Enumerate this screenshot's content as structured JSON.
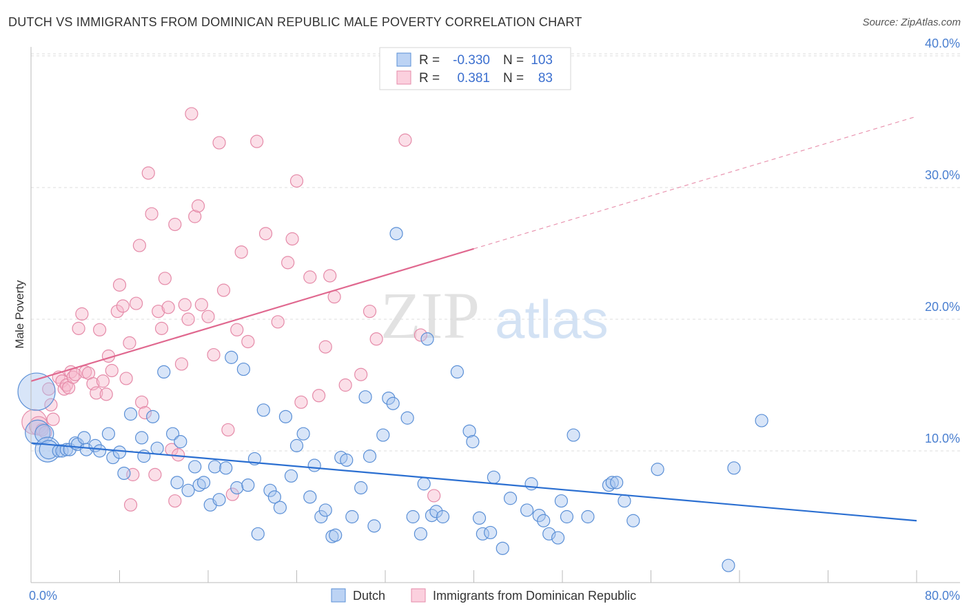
{
  "title": "DUTCH VS IMMIGRANTS FROM DOMINICAN REPUBLIC MALE POVERTY CORRELATION CHART",
  "source": "Source: ZipAtlas.com",
  "watermark": {
    "zip": "ZIP",
    "atlas": "atlas"
  },
  "legend": {
    "dutch": {
      "r_label": "R =",
      "r_value": "-0.330",
      "n_label": "N =",
      "n_value": "103"
    },
    "dominican": {
      "r_label": "R =",
      "r_value": "0.381",
      "n_label": "N =",
      "n_value": "83"
    }
  },
  "bottom_legend": {
    "dutch": "Dutch",
    "dominican": "Immigrants from Dominican Republic"
  },
  "colors": {
    "dutch_fill": "#a9c6f0",
    "dutch_stroke": "#5a8fd6",
    "dutch_line": "#2b6fd1",
    "dominican_fill": "#f6b9cd",
    "dominican_stroke": "#e58aa8",
    "dominican_line": "#e0688f",
    "tick_text": "#4a7fd0",
    "grid": "#dcdcdc"
  },
  "chart_data": {
    "type": "scatter",
    "title": "DUTCH VS IMMIGRANTS FROM DOMINICAN REPUBLIC MALE POVERTY CORRELATION CHART",
    "ylabel": "Male Poverty",
    "xlabel": "",
    "xlim": [
      0,
      80
    ],
    "ylim": [
      0,
      42
    ],
    "x_tick_labels": {
      "min": "0.0%",
      "max": "80.0%"
    },
    "y_ticks": [
      {
        "value": 10,
        "label": "10.0%"
      },
      {
        "value": 20,
        "label": "20.0%"
      },
      {
        "value": 30,
        "label": "30.0%"
      },
      {
        "value": 40,
        "label": "40.0%"
      }
    ],
    "grid": true,
    "legend_position": "top-center",
    "series": [
      {
        "name": "Dutch",
        "r": -0.33,
        "n": 103,
        "trend": {
          "x": [
            0,
            80
          ],
          "y": [
            10.6,
            4.7
          ],
          "dashed_from": null
        },
        "points": [
          [
            0.5,
            14.5,
            3
          ],
          [
            0.6,
            11.4,
            2
          ],
          [
            1.2,
            11.3,
            1.5
          ],
          [
            1.5,
            10.1,
            2
          ],
          [
            1.6,
            10.1,
            1.5
          ],
          [
            2.5,
            10.0,
            1
          ],
          [
            2.8,
            10.0,
            1
          ],
          [
            3.2,
            10.1,
            1
          ],
          [
            3.5,
            10.1,
            1
          ],
          [
            4.0,
            10.6,
            1
          ],
          [
            4.2,
            10.5,
            1
          ],
          [
            4.8,
            11.0,
            1
          ],
          [
            5.0,
            10.1,
            1
          ],
          [
            5.8,
            10.4,
            1
          ],
          [
            6.2,
            10.0,
            1
          ],
          [
            7.0,
            11.3,
            1
          ],
          [
            7.4,
            9.5,
            1
          ],
          [
            8.0,
            9.9,
            1
          ],
          [
            8.4,
            8.3,
            1
          ],
          [
            9.0,
            12.8,
            1
          ],
          [
            10.0,
            11.0,
            1
          ],
          [
            10.2,
            9.6,
            1
          ],
          [
            11.0,
            12.6,
            1
          ],
          [
            11.4,
            10.2,
            1
          ],
          [
            12.0,
            16.0,
            1
          ],
          [
            12.8,
            11.3,
            1
          ],
          [
            13.2,
            7.6,
            1
          ],
          [
            13.5,
            10.7,
            1
          ],
          [
            14.2,
            7.0,
            1
          ],
          [
            14.8,
            8.8,
            1
          ],
          [
            15.2,
            7.4,
            1
          ],
          [
            15.6,
            7.6,
            1
          ],
          [
            16.2,
            5.9,
            1
          ],
          [
            16.6,
            8.8,
            1
          ],
          [
            17.0,
            6.3,
            1
          ],
          [
            17.6,
            8.7,
            1
          ],
          [
            18.1,
            17.1,
            1
          ],
          [
            18.6,
            7.2,
            1
          ],
          [
            19.2,
            16.2,
            1
          ],
          [
            19.6,
            7.4,
            1
          ],
          [
            20.2,
            9.4,
            1
          ],
          [
            20.5,
            3.7,
            1
          ],
          [
            21.0,
            13.1,
            1
          ],
          [
            21.6,
            7.0,
            1
          ],
          [
            22.0,
            6.5,
            1
          ],
          [
            22.5,
            5.7,
            1
          ],
          [
            23.0,
            12.6,
            1
          ],
          [
            23.5,
            8.1,
            1
          ],
          [
            24.0,
            10.4,
            1
          ],
          [
            24.6,
            11.3,
            1
          ],
          [
            25.2,
            6.5,
            1
          ],
          [
            25.6,
            8.9,
            1
          ],
          [
            26.2,
            5.0,
            1
          ],
          [
            26.6,
            5.5,
            1
          ],
          [
            27.2,
            3.5,
            1
          ],
          [
            27.5,
            3.6,
            1
          ],
          [
            28.0,
            9.5,
            1
          ],
          [
            28.5,
            9.3,
            1
          ],
          [
            29.0,
            5.0,
            1
          ],
          [
            29.8,
            7.2,
            1
          ],
          [
            30.2,
            14.1,
            1
          ],
          [
            30.6,
            9.6,
            1
          ],
          [
            31.0,
            4.3,
            1
          ],
          [
            31.8,
            11.2,
            1
          ],
          [
            32.3,
            14.0,
            1
          ],
          [
            32.7,
            13.6,
            1
          ],
          [
            33.0,
            26.5,
            1
          ],
          [
            34.0,
            12.5,
            1
          ],
          [
            34.5,
            5.0,
            1
          ],
          [
            35.5,
            7.5,
            1
          ],
          [
            35.8,
            18.5,
            1
          ],
          [
            35.2,
            3.7,
            1
          ],
          [
            36.2,
            5.1,
            1
          ],
          [
            36.6,
            5.4,
            1
          ],
          [
            37.2,
            5.0,
            1
          ],
          [
            38.5,
            16.0,
            1
          ],
          [
            39.6,
            11.5,
            1
          ],
          [
            39.9,
            10.7,
            1
          ],
          [
            40.5,
            4.9,
            1
          ],
          [
            40.8,
            3.7,
            1
          ],
          [
            41.5,
            3.8,
            1
          ],
          [
            41.8,
            8.0,
            1
          ],
          [
            42.6,
            2.6,
            1
          ],
          [
            43.3,
            6.4,
            1
          ],
          [
            44.8,
            5.5,
            1
          ],
          [
            45.2,
            7.5,
            1
          ],
          [
            45.9,
            5.1,
            1
          ],
          [
            46.3,
            4.7,
            1
          ],
          [
            46.8,
            3.7,
            1
          ],
          [
            47.6,
            3.4,
            1
          ],
          [
            47.9,
            6.2,
            1
          ],
          [
            48.4,
            5.0,
            1
          ],
          [
            49.0,
            11.2,
            1
          ],
          [
            50.3,
            5.0,
            1
          ],
          [
            52.2,
            7.4,
            1
          ],
          [
            52.5,
            7.6,
            1
          ],
          [
            52.9,
            7.6,
            1
          ],
          [
            53.6,
            6.2,
            1
          ],
          [
            54.4,
            4.7,
            1
          ],
          [
            56.6,
            8.6,
            1
          ],
          [
            63.0,
            1.3,
            1
          ],
          [
            63.5,
            8.7,
            1
          ],
          [
            66.0,
            12.3,
            1
          ]
        ]
      },
      {
        "name": "Immigrants from Dominican Republic",
        "r": 0.381,
        "n": 83,
        "trend": {
          "x": [
            0,
            80
          ],
          "y": [
            15.3,
            35.4
          ],
          "dashed_from": 40
        },
        "points": [
          [
            0.3,
            12.2,
            2
          ],
          [
            0.7,
            11.9,
            1.5
          ],
          [
            1.0,
            11.6,
            1
          ],
          [
            1.3,
            11.4,
            1
          ],
          [
            1.6,
            14.7,
            1
          ],
          [
            1.8,
            13.5,
            1
          ],
          [
            2.0,
            12.4,
            1
          ],
          [
            2.5,
            15.6,
            1
          ],
          [
            2.8,
            15.3,
            1
          ],
          [
            3.0,
            14.7,
            1
          ],
          [
            3.2,
            15.0,
            1
          ],
          [
            3.4,
            14.8,
            1
          ],
          [
            3.6,
            16.0,
            1
          ],
          [
            3.8,
            15.6,
            1
          ],
          [
            4.0,
            15.8,
            1
          ],
          [
            4.3,
            19.3,
            1
          ],
          [
            4.6,
            20.4,
            1
          ],
          [
            4.9,
            16.0,
            1
          ],
          [
            5.2,
            15.9,
            1
          ],
          [
            5.6,
            15.1,
            1
          ],
          [
            5.9,
            14.4,
            1
          ],
          [
            6.2,
            19.2,
            1
          ],
          [
            6.5,
            15.3,
            1
          ],
          [
            6.8,
            14.3,
            1
          ],
          [
            7.0,
            17.2,
            1
          ],
          [
            7.3,
            16.1,
            1
          ],
          [
            7.8,
            20.6,
            1
          ],
          [
            8.0,
            22.6,
            1
          ],
          [
            8.3,
            21.0,
            1
          ],
          [
            8.6,
            15.5,
            1
          ],
          [
            8.9,
            18.2,
            1
          ],
          [
            9.2,
            8.2,
            1
          ],
          [
            9.5,
            21.2,
            1
          ],
          [
            9.8,
            25.6,
            1
          ],
          [
            10.0,
            13.7,
            1
          ],
          [
            10.3,
            12.9,
            1
          ],
          [
            10.6,
            31.1,
            1
          ],
          [
            10.9,
            28.0,
            1
          ],
          [
            11.2,
            8.2,
            1
          ],
          [
            11.5,
            20.6,
            1
          ],
          [
            11.8,
            19.3,
            1
          ],
          [
            12.1,
            23.1,
            1
          ],
          [
            12.4,
            20.9,
            1
          ],
          [
            12.7,
            10.1,
            1
          ],
          [
            13.0,
            27.2,
            1
          ],
          [
            13.3,
            9.7,
            1
          ],
          [
            13.6,
            16.6,
            1
          ],
          [
            13.9,
            21.1,
            1
          ],
          [
            14.2,
            20.0,
            1
          ],
          [
            14.5,
            35.6,
            1
          ],
          [
            14.8,
            27.8,
            1
          ],
          [
            15.1,
            28.6,
            1
          ],
          [
            15.4,
            21.1,
            1
          ],
          [
            16.0,
            20.2,
            1
          ],
          [
            16.5,
            17.3,
            1
          ],
          [
            17.0,
            33.4,
            1
          ],
          [
            17.4,
            22.2,
            1
          ],
          [
            17.8,
            11.6,
            1
          ],
          [
            18.2,
            6.7,
            1
          ],
          [
            18.6,
            19.2,
            1
          ],
          [
            19.0,
            25.1,
            1
          ],
          [
            19.6,
            18.3,
            1
          ],
          [
            20.4,
            33.5,
            1
          ],
          [
            21.2,
            26.5,
            1
          ],
          [
            22.3,
            19.8,
            1
          ],
          [
            23.2,
            24.3,
            1
          ],
          [
            23.6,
            26.1,
            1
          ],
          [
            24.0,
            30.5,
            1
          ],
          [
            24.4,
            13.7,
            1
          ],
          [
            25.2,
            23.2,
            1
          ],
          [
            26.0,
            14.2,
            1
          ],
          [
            26.6,
            17.9,
            1
          ],
          [
            27.0,
            23.3,
            1
          ],
          [
            27.4,
            21.7,
            1
          ],
          [
            28.4,
            15.0,
            1
          ],
          [
            29.8,
            15.8,
            1
          ],
          [
            30.6,
            20.6,
            1
          ],
          [
            31.2,
            18.5,
            1
          ],
          [
            33.8,
            33.6,
            1
          ],
          [
            35.2,
            18.8,
            1
          ],
          [
            36.4,
            6.6,
            1
          ],
          [
            13.0,
            6.2,
            1
          ],
          [
            9.0,
            5.9,
            1
          ]
        ]
      }
    ]
  }
}
